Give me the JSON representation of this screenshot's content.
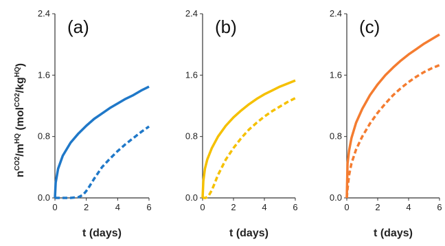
{
  "figure": {
    "ylabel_main": "n",
    "ylabel_sup1": "CO2",
    "ylabel_mid": "/m",
    "ylabel_sup2": "HQ",
    "ylabel_open": " (mol",
    "ylabel_sup3": "CO2",
    "ylabel_slash": "/kg",
    "ylabel_sup4": "HQ",
    "ylabel_close": ")"
  },
  "chart_data": [
    {
      "type": "line",
      "panel_label": "(a)",
      "xlabel": "t (days)",
      "xlim": [
        0,
        6
      ],
      "ylim": [
        0,
        2.4
      ],
      "xticks": [
        "0",
        "2",
        "4",
        "6"
      ],
      "yticks": [
        "0.0",
        "0.8",
        "1.6",
        "2.4"
      ],
      "color": "#1f78c8",
      "series": [
        {
          "style": "solid",
          "x": [
            0,
            0.05,
            0.2,
            0.5,
            1,
            1.5,
            2,
            2.5,
            3,
            3.5,
            4,
            4.5,
            5,
            5.5,
            6
          ],
          "y": [
            0,
            0.2,
            0.38,
            0.55,
            0.72,
            0.84,
            0.94,
            1.03,
            1.1,
            1.17,
            1.23,
            1.29,
            1.34,
            1.4,
            1.45
          ]
        },
        {
          "style": "dashed",
          "x": [
            0,
            0.5,
            1,
            1.5,
            1.8,
            2,
            2.2,
            2.5,
            3,
            3.5,
            4,
            4.5,
            5,
            5.5,
            6
          ],
          "y": [
            0,
            0.0,
            0.0,
            0.01,
            0.04,
            0.09,
            0.15,
            0.25,
            0.4,
            0.51,
            0.61,
            0.7,
            0.78,
            0.86,
            0.93
          ]
        }
      ]
    },
    {
      "type": "line",
      "panel_label": "(b)",
      "xlabel": "t (days)",
      "xlim": [
        0,
        6
      ],
      "ylim": [
        0,
        2.4
      ],
      "xticks": [
        "0",
        "2",
        "4",
        "6"
      ],
      "yticks": [
        "0.0",
        "0.8",
        "1.6",
        "2.4"
      ],
      "color": "#f5c000",
      "series": [
        {
          "style": "solid",
          "x": [
            0,
            0.05,
            0.15,
            0.3,
            0.6,
            1,
            1.5,
            2,
            2.5,
            3,
            3.5,
            4,
            4.5,
            5,
            5.5,
            6
          ],
          "y": [
            0,
            0.22,
            0.38,
            0.5,
            0.65,
            0.8,
            0.94,
            1.05,
            1.14,
            1.22,
            1.29,
            1.35,
            1.4,
            1.45,
            1.49,
            1.53
          ]
        },
        {
          "style": "dashed",
          "x": [
            0,
            0.2,
            0.4,
            0.6,
            0.8,
            1,
            1.5,
            2,
            2.5,
            3,
            3.5,
            4,
            4.5,
            5,
            5.5,
            6
          ],
          "y": [
            0,
            0.0,
            0.03,
            0.1,
            0.2,
            0.3,
            0.5,
            0.65,
            0.78,
            0.89,
            0.98,
            1.06,
            1.13,
            1.19,
            1.25,
            1.3
          ]
        }
      ]
    },
    {
      "type": "line",
      "panel_label": "(c)",
      "xlabel": "t (days)",
      "xlim": [
        0,
        6
      ],
      "ylim": [
        0,
        2.4
      ],
      "xticks": [
        "0",
        "2",
        "4",
        "6"
      ],
      "yticks": [
        "0.0",
        "0.8",
        "1.6",
        "2.4"
      ],
      "color": "#f47c30",
      "series": [
        {
          "style": "solid",
          "x": [
            0,
            0.05,
            0.15,
            0.3,
            0.6,
            1,
            1.5,
            2,
            2.5,
            3,
            3.5,
            4,
            4.5,
            5,
            5.5,
            6
          ],
          "y": [
            0,
            0.45,
            0.62,
            0.78,
            0.98,
            1.16,
            1.34,
            1.48,
            1.6,
            1.7,
            1.79,
            1.87,
            1.94,
            2.01,
            2.07,
            2.13
          ]
        },
        {
          "style": "dashed",
          "x": [
            0,
            0.05,
            0.15,
            0.3,
            0.6,
            1,
            1.5,
            2,
            2.5,
            3,
            3.5,
            4,
            4.5,
            5,
            5.5,
            6
          ],
          "y": [
            0,
            0.12,
            0.3,
            0.45,
            0.63,
            0.8,
            0.97,
            1.11,
            1.23,
            1.34,
            1.43,
            1.51,
            1.58,
            1.64,
            1.69,
            1.73
          ]
        }
      ]
    }
  ]
}
